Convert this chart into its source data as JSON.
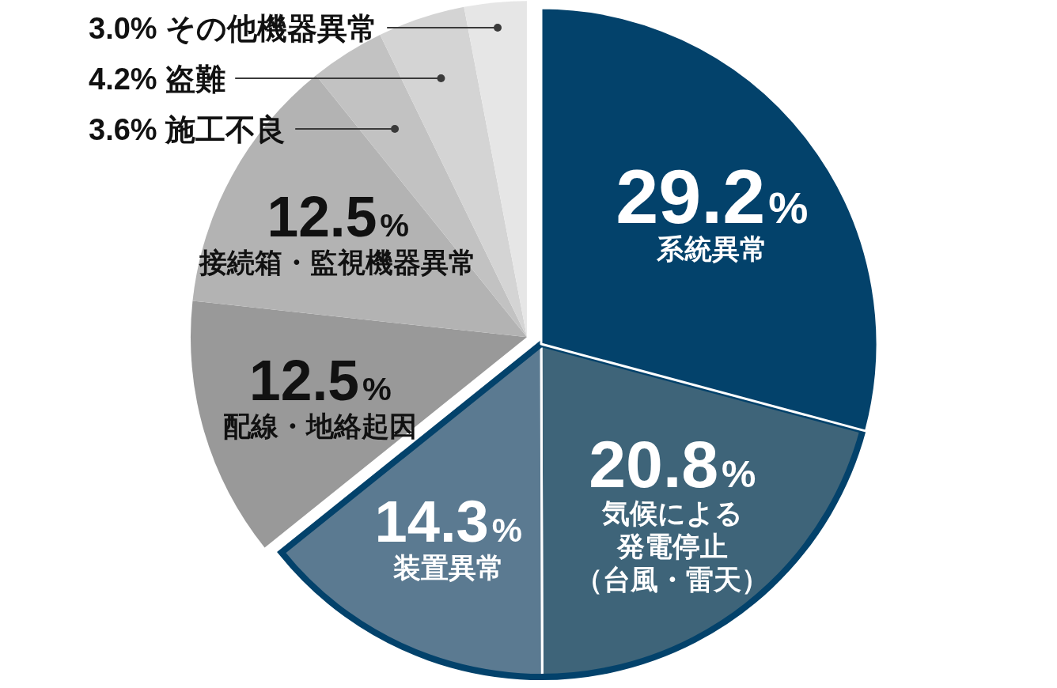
{
  "chart_data": {
    "type": "pie",
    "categories": [
      "系統異常",
      "気候による発電停止（台風・雷天）",
      "装置異常",
      "配線・地絡起因",
      "接続箱・監視機器異常",
      "施工不良",
      "盗難",
      "その他機器異常"
    ],
    "values": [
      29.2,
      20.8,
      14.3,
      12.5,
      12.5,
      3.6,
      4.2,
      3.0
    ],
    "colors": [
      "#03426b",
      "#3e6479",
      "#5b7a91",
      "#999999",
      "#b3b3b3",
      "#c2c2c2",
      "#d4d4d4",
      "#e6e6e6"
    ],
    "value_labels": [
      "29.2%",
      "20.8%",
      "14.3%",
      "12.5%",
      "12.5%",
      "3.6%",
      "4.2%",
      "3.0%"
    ]
  }
}
